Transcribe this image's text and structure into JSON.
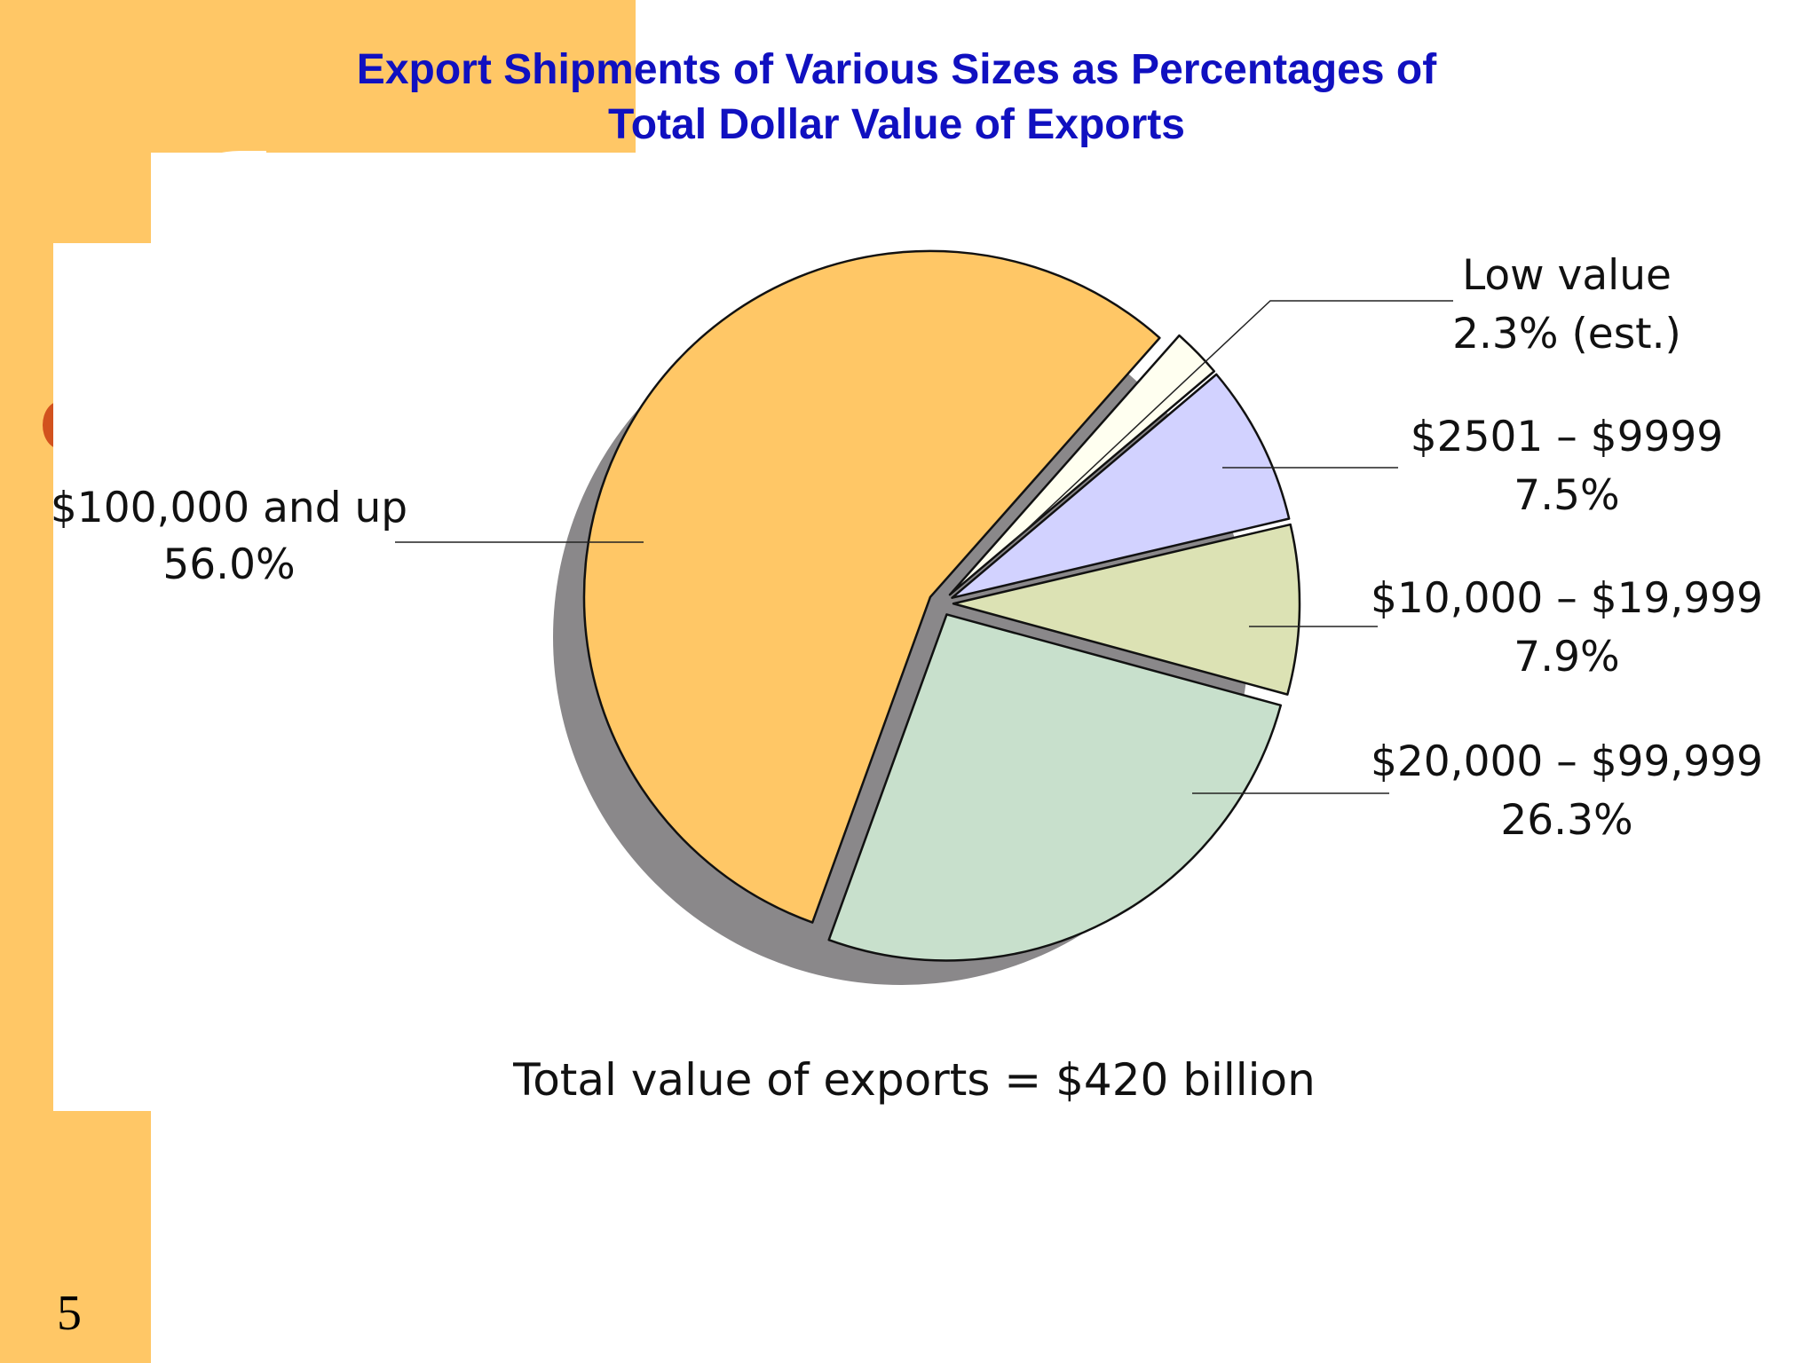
{
  "slide": {
    "title_line1": "Export Shipments of Various Sizes as Percentages of",
    "title_line2": "Total Dollar Value of Exports",
    "number": "5"
  },
  "chart_data": {
    "type": "pie",
    "title": "Export Shipments of Various Sizes as Percentages of Total Dollar Value of Exports",
    "unit": "%",
    "note": "Total value of exports = $420 billion",
    "slices": [
      {
        "name": "$100,000 and up",
        "value_label": "56.0%",
        "value": 56.0,
        "color": "#FFC766"
      },
      {
        "name": "Low value",
        "value_label": "2.3% (est.)",
        "value": 2.3,
        "color": "#FFFFF0"
      },
      {
        "name": "$2501 – $9999",
        "value_label": "7.5%",
        "value": 7.5,
        "color": "#D2D2FF"
      },
      {
        "name": "$10,000 – $19,999",
        "value_label": "7.9%",
        "value": 7.9,
        "color": "#DCE2B4"
      },
      {
        "name": "$20,000 – $99,999",
        "value_label": "26.3%",
        "value": 26.3,
        "color": "#C8E0CC"
      }
    ]
  }
}
